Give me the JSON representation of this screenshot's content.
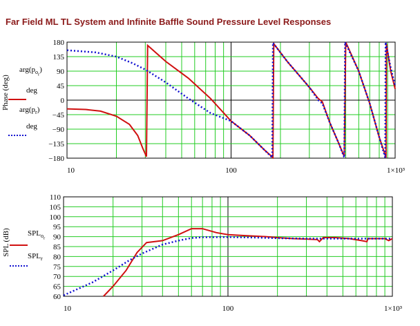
{
  "title": "Far Field ML TL System and Infinite Baffle Sound Pressure Level Responses",
  "top_plot": {
    "ylabel": "Phase (deg)",
    "legend": [
      {
        "label": "arg(po_r) / deg",
        "color": "#d01010",
        "style": "solid"
      },
      {
        "label": "arg(p_r) / deg",
        "color": "#1010d0",
        "style": "dotted"
      }
    ],
    "x_ticks": [
      "10",
      "100",
      "1×10³"
    ],
    "y_ticks": [
      "180",
      "135",
      "90",
      "45",
      "0",
      "−45",
      "−90",
      "−135",
      "−180"
    ]
  },
  "bottom_plot": {
    "ylabel": "SPL (dB)",
    "legend": [
      {
        "label": "SPLo_r",
        "color": "#d01010",
        "style": "solid"
      },
      {
        "label": "SPL_r",
        "color": "#1010d0",
        "style": "dotted"
      }
    ],
    "x_ticks": [
      "10",
      "100",
      "1×10³"
    ],
    "y_ticks": [
      "110",
      "105",
      "100",
      "95",
      "90",
      "85",
      "80",
      "75",
      "70",
      "65",
      "60"
    ]
  },
  "chart_data": [
    {
      "type": "line",
      "title": "",
      "ylabel": "Phase (deg)",
      "xscale": "log",
      "xlim": [
        10,
        1000
      ],
      "ylim": [
        -180,
        180
      ],
      "grid": true,
      "series": [
        {
          "name": "arg(po_r)/deg",
          "color": "#d01010",
          "style": "solid",
          "points": [
            [
              10,
              -27
            ],
            [
              13,
              -29
            ],
            [
              16,
              -34
            ],
            [
              20,
              -50
            ],
            [
              24,
              -75
            ],
            [
              27,
              -110
            ],
            [
              29,
              -150
            ],
            [
              30.5,
              -175
            ],
            [
              31,
              170
            ],
            [
              40,
              120
            ],
            [
              55,
              68
            ],
            [
              75,
              5
            ],
            [
              100,
              -65
            ],
            [
              130,
              -110
            ],
            [
              160,
              -155
            ],
            [
              180,
              -178
            ],
            [
              182,
              175
            ],
            [
              220,
              120
            ],
            [
              300,
              40
            ],
            [
              340,
              5
            ],
            [
              360,
              -5
            ],
            [
              400,
              -70
            ],
            [
              450,
              -130
            ],
            [
              490,
              -175
            ],
            [
              500,
              180
            ],
            [
              600,
              90
            ],
            [
              700,
              -10
            ],
            [
              800,
              -115
            ],
            [
              880,
              -178
            ],
            [
              885,
              175
            ],
            [
              940,
              90
            ],
            [
              1000,
              35
            ]
          ]
        },
        {
          "name": "arg(p_r)/deg",
          "color": "#1010d0",
          "style": "dotted",
          "points": [
            [
              10,
              155
            ],
            [
              15,
              148
            ],
            [
              20,
              135
            ],
            [
              25,
              115
            ],
            [
              30,
              95
            ],
            [
              40,
              55
            ],
            [
              55,
              5
            ],
            [
              75,
              -40
            ],
            [
              100,
              -65
            ],
            [
              130,
              -110
            ],
            [
              160,
              -155
            ],
            [
              178,
              -178
            ],
            [
              180,
              178
            ],
            [
              220,
              120
            ],
            [
              300,
              40
            ],
            [
              340,
              0
            ],
            [
              360,
              -10
            ],
            [
              400,
              -70
            ],
            [
              450,
              -130
            ],
            [
              490,
              -178
            ],
            [
              495,
              180
            ],
            [
              600,
              90
            ],
            [
              700,
              -10
            ],
            [
              800,
              -115
            ],
            [
              870,
              -178
            ],
            [
              875,
              180
            ],
            [
              940,
              100
            ],
            [
              1000,
              45
            ]
          ]
        }
      ]
    },
    {
      "type": "line",
      "title": "",
      "ylabel": "SPL (dB)",
      "xscale": "log",
      "xlim": [
        10,
        1000
      ],
      "ylim": [
        60,
        110
      ],
      "grid": true,
      "series": [
        {
          "name": "SPLo_r",
          "color": "#d01010",
          "style": "solid",
          "points": [
            [
              17.5,
              60
            ],
            [
              20,
              65
            ],
            [
              24,
              73
            ],
            [
              28,
              82
            ],
            [
              32,
              87
            ],
            [
              40,
              88
            ],
            [
              50,
              91
            ],
            [
              60,
              94
            ],
            [
              70,
              94
            ],
            [
              85,
              92
            ],
            [
              100,
              91
            ],
            [
              130,
              90.5
            ],
            [
              170,
              90
            ],
            [
              200,
              89.5
            ],
            [
              250,
              89
            ],
            [
              300,
              88.8
            ],
            [
              350,
              88.5
            ],
            [
              360,
              87.5
            ],
            [
              380,
              89.5
            ],
            [
              450,
              89.5
            ],
            [
              550,
              89
            ],
            [
              650,
              88
            ],
            [
              700,
              87.5
            ],
            [
              710,
              89
            ],
            [
              800,
              89
            ],
            [
              900,
              89
            ],
            [
              950,
              88
            ],
            [
              1000,
              89
            ]
          ]
        },
        {
          "name": "SPL_r",
          "color": "#1010d0",
          "style": "dotted",
          "points": [
            [
              10,
              60.5
            ],
            [
              15,
              67
            ],
            [
              20,
              73
            ],
            [
              25,
              78
            ],
            [
              30,
              81.5
            ],
            [
              40,
              86
            ],
            [
              50,
              88
            ],
            [
              60,
              89.3
            ],
            [
              70,
              89.7
            ],
            [
              100,
              89.8
            ],
            [
              150,
              89.5
            ],
            [
              200,
              89.2
            ],
            [
              300,
              89
            ],
            [
              500,
              89
            ],
            [
              700,
              89
            ],
            [
              1000,
              89
            ]
          ]
        }
      ]
    }
  ]
}
